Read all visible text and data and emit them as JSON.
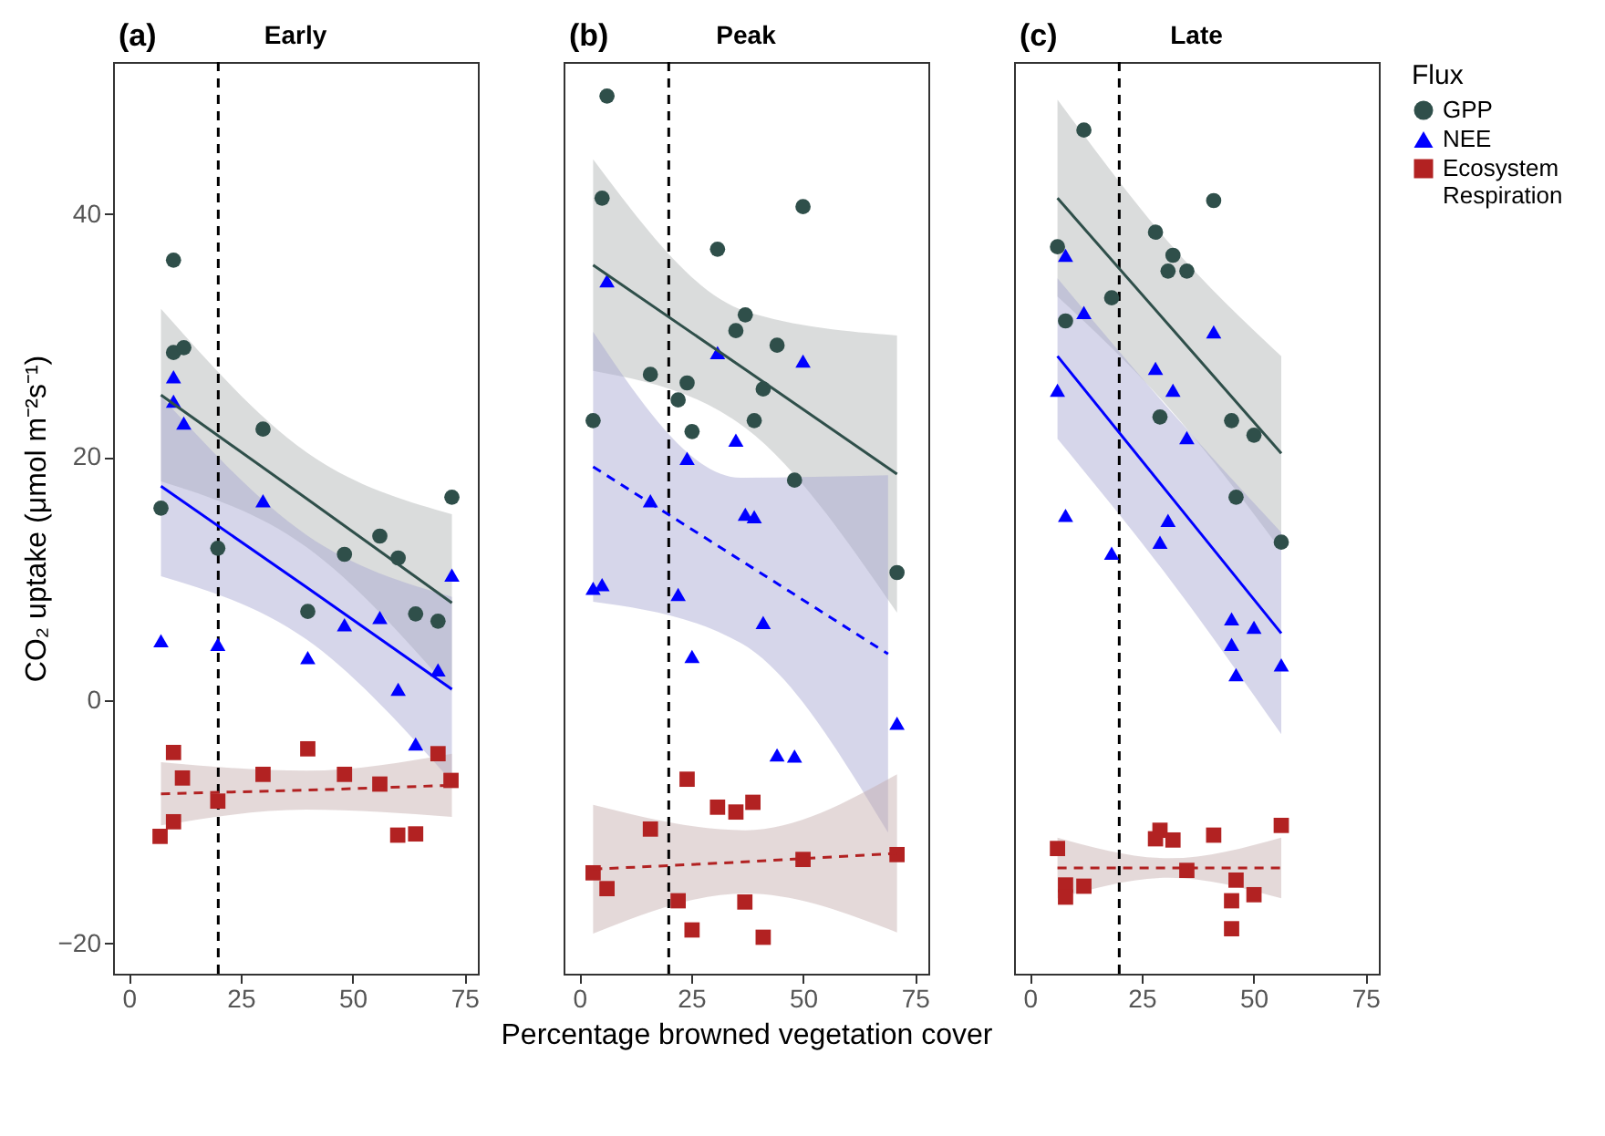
{
  "chart_data": [
    {
      "type": "scatter",
      "title": "Early",
      "annotations": [
        "(a)"
      ],
      "ylabel": "CO₂ uptake (μmol m⁻²s⁻¹)",
      "xlim": [
        -3.5,
        78
      ],
      "xticks": [
        0,
        25,
        50,
        75
      ],
      "ylim": [
        -22.5,
        52.5
      ],
      "yticks": [
        -20,
        0,
        20,
        40
      ],
      "grid": false,
      "legend": false,
      "ref_lines": [
        {
          "axis": "x",
          "value": 20,
          "color": "#000000",
          "line_style": "dashed"
        }
      ],
      "series": [
        {
          "type": "scatter",
          "marker": "circle",
          "color": "#2f4f4a",
          "x": [
            10.0,
            10.0,
            12.3,
            30.0,
            7.2,
            19.9,
            40.0,
            48.2,
            56.1,
            60.2,
            64.1,
            69.1,
            72.2
          ],
          "values": [
            36.2,
            28.6,
            29.0,
            22.3,
            15.8,
            12.5,
            7.3,
            12.0,
            13.5,
            11.7,
            7.1,
            6.5,
            16.7
          ]
        },
        {
          "type": "scatter",
          "marker": "triangle",
          "color": "#0000ff",
          "x": [
            10.0,
            10.0,
            12.3,
            7.2,
            19.9,
            30.0,
            40.0,
            48.2,
            56.1,
            60.2,
            64.1,
            69.1,
            72.2
          ],
          "values": [
            26.6,
            24.6,
            22.8,
            4.9,
            4.6,
            16.4,
            3.5,
            6.2,
            6.8,
            0.9,
            -3.6,
            2.5,
            10.3
          ]
        },
        {
          "type": "scatter",
          "marker": "square",
          "color": "#b22222",
          "x": [
            10.0,
            12.0,
            7.0,
            10.0,
            19.9,
            30.0,
            40.0,
            48.2,
            56.1,
            60.1,
            64.1,
            69.1,
            72.0
          ],
          "values": [
            -4.3,
            -6.4,
            -11.2,
            -10.0,
            -8.3,
            -6.1,
            -4.0,
            -6.1,
            -6.9,
            -11.1,
            -11.0,
            -4.4,
            -6.6
          ]
        },
        {
          "type": "line",
          "line_style": "solid",
          "color": "#2f4f4a",
          "x": [
            7.2,
            39.7,
            72.2
          ],
          "values": [
            25.1,
            16.6,
            8.0
          ],
          "lower": [
            18.0,
            12.6,
            0.7
          ],
          "upper": [
            32.2,
            20.4,
            15.3
          ]
        },
        {
          "type": "line",
          "line_style": "solid",
          "color": "#0000ff",
          "x": [
            7.2,
            39.7,
            72.2
          ],
          "values": [
            17.6,
            9.3,
            0.9
          ],
          "lower": [
            10.2,
            5.0,
            -6.7
          ],
          "upper": [
            25.0,
            13.6,
            8.5
          ]
        },
        {
          "type": "line",
          "line_style": "dashed",
          "color": "#b22222",
          "x": [
            7.2,
            39.7,
            72.2
          ],
          "values": [
            -7.7,
            -7.4,
            -7.0
          ],
          "lower": [
            -10.3,
            -9.0,
            -9.6
          ],
          "upper": [
            -5.1,
            -5.8,
            -4.4
          ]
        }
      ]
    },
    {
      "type": "scatter",
      "title": "Peak",
      "annotations": [
        "(b)"
      ],
      "xlabel": "Percentage browned vegetation cover",
      "xlim": [
        -3.5,
        78
      ],
      "xticks": [
        0,
        25,
        50,
        75
      ],
      "ylim": [
        -22.5,
        52.5
      ],
      "yticks": [
        -20,
        0,
        20,
        40
      ],
      "tick_labels": "x",
      "grid": false,
      "legend": false,
      "ref_lines": [
        {
          "axis": "x",
          "value": 20,
          "color": "#000000",
          "line_style": "dashed"
        }
      ],
      "series": [
        {
          "type": "scatter",
          "marker": "circle",
          "color": "#2f4f4a",
          "x": [
            6.2,
            5.1,
            50.0,
            30.9,
            37.1,
            35.0,
            44.2,
            15.9,
            24.1,
            22.1,
            41.1,
            3.1,
            39.1,
            25.2,
            48.1,
            71.0
          ],
          "values": [
            49.7,
            41.3,
            40.6,
            37.1,
            31.7,
            30.4,
            29.2,
            26.8,
            26.1,
            24.7,
            25.6,
            23.0,
            23.0,
            22.1,
            18.1,
            10.5
          ]
        },
        {
          "type": "scatter",
          "marker": "triangle",
          "color": "#0000ff",
          "x": [
            6.2,
            30.9,
            50.0,
            35.0,
            24.1,
            15.9,
            37.1,
            39.1,
            3.1,
            5.1,
            22.1,
            41.1,
            25.2,
            44.2,
            48.1,
            71.0
          ],
          "values": [
            34.5,
            28.6,
            27.9,
            21.4,
            19.9,
            16.4,
            15.3,
            15.1,
            9.2,
            9.5,
            8.7,
            6.4,
            3.6,
            -4.5,
            -4.6,
            -1.9
          ]
        },
        {
          "type": "scatter",
          "marker": "square",
          "color": "#b22222",
          "x": [
            24.1,
            30.9,
            35.0,
            38.8,
            15.9,
            3.1,
            6.2,
            50.0,
            71.0,
            22.1,
            37.0,
            25.2,
            41.1
          ],
          "values": [
            -6.5,
            -8.8,
            -9.2,
            -8.4,
            -10.6,
            -14.2,
            -15.5,
            -13.1,
            -12.7,
            -16.5,
            -16.6,
            -18.9,
            -19.5
          ]
        },
        {
          "type": "line",
          "line_style": "solid",
          "color": "#2f4f4a",
          "x": [
            3.1,
            37.1,
            71.0
          ],
          "values": [
            35.8,
            27.2,
            18.6
          ],
          "lower": [
            27.1,
            22.4,
            7.2
          ],
          "upper": [
            44.5,
            32.0,
            30.0
          ]
        },
        {
          "type": "line",
          "line_style": "dashed",
          "color": "#0000ff",
          "x": [
            3.1,
            36.1,
            69.0
          ],
          "values": [
            19.2,
            11.5,
            3.8
          ],
          "lower": [
            8.1,
            4.7,
            -10.9
          ],
          "upper": [
            30.3,
            18.3,
            18.5
          ]
        },
        {
          "type": "line",
          "line_style": "dashed",
          "color": "#b22222",
          "x": [
            3.1,
            37.1,
            71.0
          ],
          "values": [
            -13.9,
            -13.3,
            -12.6
          ],
          "lower": [
            -19.2,
            -15.9,
            -19.1
          ],
          "upper": [
            -8.6,
            -10.7,
            -6.1
          ]
        }
      ]
    },
    {
      "type": "scatter",
      "title": "Late",
      "annotations": [
        "(c)"
      ],
      "legend_title": "Flux",
      "xlim": [
        -3.5,
        78
      ],
      "xticks": [
        0,
        25,
        50,
        75
      ],
      "ylim": [
        -22.5,
        52.5
      ],
      "yticks": [
        -20,
        0,
        20,
        40
      ],
      "tick_labels": "x",
      "grid": false,
      "legend": "right",
      "ref_lines": [
        {
          "axis": "x",
          "value": 20,
          "color": "#000000",
          "line_style": "dashed"
        }
      ],
      "series": [
        {
          "type": "scatter",
          "name": "GPP",
          "marker": "circle",
          "color": "#2f4f4a",
          "x": [
            12.1,
            41.1,
            28.1,
            6.2,
            32.0,
            30.9,
            35.1,
            18.3,
            8.0,
            29.1,
            45.1,
            50.1,
            46.1,
            56.2
          ],
          "values": [
            46.9,
            41.1,
            38.5,
            37.3,
            36.6,
            35.3,
            35.3,
            33.1,
            31.2,
            23.3,
            23.0,
            21.8,
            16.7,
            13.0
          ]
        },
        {
          "type": "scatter",
          "name": "NEE",
          "marker": "triangle",
          "color": "#0000ff",
          "x": [
            8.0,
            12.1,
            41.1,
            28.1,
            32.0,
            6.2,
            35.1,
            8.0,
            30.9,
            29.1,
            18.3,
            45.1,
            50.1,
            45.1,
            46.1,
            56.2
          ],
          "values": [
            36.6,
            31.9,
            30.3,
            27.3,
            25.5,
            25.5,
            21.6,
            15.2,
            14.8,
            13.0,
            12.1,
            6.7,
            6.0,
            4.6,
            2.1,
            2.9
          ]
        },
        {
          "type": "scatter",
          "name": "Ecosystem Respiration",
          "marker": "square",
          "color": "#b22222",
          "x": [
            56.2,
            29.1,
            28.1,
            32.0,
            41.1,
            6.2,
            35.1,
            12.1,
            8.0,
            8.0,
            46.1,
            50.1,
            45.1,
            45.1
          ],
          "values": [
            -10.3,
            -10.7,
            -11.4,
            -11.5,
            -11.1,
            -12.2,
            -14.0,
            -15.3,
            -15.2,
            -16.2,
            -14.8,
            -16.0,
            -16.5,
            -18.8
          ]
        },
        {
          "type": "line",
          "line_style": "solid",
          "color": "#2f4f4a",
          "x": [
            6.2,
            31.2,
            56.2
          ],
          "values": [
            41.3,
            30.8,
            20.3
          ],
          "lower": [
            33.2,
            24.0,
            12.3
          ],
          "upper": [
            49.4,
            37.6,
            28.3
          ]
        },
        {
          "type": "line",
          "line_style": "solid",
          "color": "#0000ff",
          "x": [
            6.2,
            31.2,
            56.2
          ],
          "values": [
            28.3,
            16.9,
            5.5
          ],
          "lower": [
            21.5,
            10.0,
            -2.8
          ],
          "upper": [
            34.7,
            23.9,
            13.8
          ]
        },
        {
          "type": "line",
          "line_style": "dashed",
          "color": "#b22222",
          "x": [
            6.2,
            31.2,
            56.2
          ],
          "values": [
            -13.8,
            -13.8,
            -13.8
          ],
          "lower": [
            -16.3,
            -14.6,
            -16.3
          ],
          "upper": [
            -11.3,
            -13.0,
            -11.3
          ]
        }
      ]
    }
  ]
}
